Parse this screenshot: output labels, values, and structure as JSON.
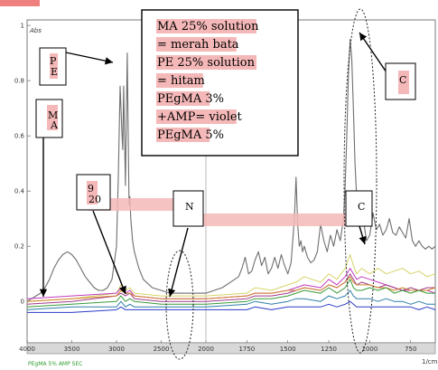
{
  "chart_data": {
    "type": "line",
    "ylabel": "Abs",
    "xlabel": "1/cm",
    "xlim": [
      4000,
      600
    ],
    "ylim": [
      -0.15,
      1.02
    ],
    "x_ticks": [
      4000,
      3500,
      3000,
      2500,
      2000,
      1750,
      1500,
      1250,
      1000,
      750
    ],
    "x_tick_labels": [
      "4000",
      "3500",
      "3000",
      "2500",
      "2000",
      "1750",
      "1500",
      "1250",
      "1000",
      "750"
    ],
    "y_ticks": [
      1.0,
      0.8,
      0.6,
      0.4,
      0.2,
      0.0
    ],
    "y_tick_labels": [
      "1",
      "0.8",
      "0.6",
      "0.4",
      "0.2",
      "0"
    ],
    "footer_caption": "PEgMA 5% AMP SEC",
    "series": [
      {
        "color": "#6e6e6e",
        "x": [
          4000,
          3950,
          3900,
          3850,
          3800,
          3750,
          3700,
          3650,
          3600,
          3550,
          3500,
          3450,
          3400,
          3350,
          3300,
          3250,
          3200,
          3150,
          3100,
          3050,
          3000,
          2980,
          2960,
          2940,
          2930,
          2920,
          2900,
          2880,
          2870,
          2860,
          2850,
          2840,
          2820,
          2800,
          2750,
          2700,
          2600,
          2500,
          2400,
          2300,
          2200,
          2100,
          2000,
          1950,
          1900,
          1850,
          1800,
          1780,
          1760,
          1750,
          1740,
          1720,
          1700,
          1680,
          1660,
          1640,
          1620,
          1600,
          1580,
          1560,
          1540,
          1520,
          1500,
          1480,
          1460,
          1450,
          1440,
          1430,
          1420,
          1410,
          1400,
          1380,
          1360,
          1340,
          1320,
          1300,
          1280,
          1260,
          1240,
          1220,
          1200,
          1180,
          1160,
          1150,
          1140,
          1130,
          1120,
          1110,
          1100,
          1090,
          1080,
          1070,
          1060,
          1050,
          1040,
          1020,
          1000,
          980,
          960,
          940,
          920,
          900,
          880,
          860,
          840,
          820,
          800,
          780,
          760,
          740,
          720,
          700,
          680,
          660,
          640,
          620,
          600
        ],
        "y": [
          0.0,
          0.01,
          0.02,
          0.03,
          0.05,
          0.08,
          0.12,
          0.15,
          0.17,
          0.18,
          0.17,
          0.15,
          0.12,
          0.09,
          0.07,
          0.05,
          0.04,
          0.04,
          0.05,
          0.08,
          0.2,
          0.45,
          0.78,
          0.62,
          0.55,
          0.78,
          0.42,
          0.9,
          0.62,
          0.35,
          0.38,
          0.3,
          0.22,
          0.18,
          0.12,
          0.08,
          0.05,
          0.04,
          0.03,
          0.03,
          0.03,
          0.03,
          0.03,
          0.04,
          0.05,
          0.07,
          0.09,
          0.12,
          0.16,
          0.13,
          0.1,
          0.11,
          0.15,
          0.18,
          0.13,
          0.16,
          0.1,
          0.12,
          0.16,
          0.12,
          0.17,
          0.13,
          0.1,
          0.14,
          0.3,
          0.45,
          0.28,
          0.2,
          0.22,
          0.18,
          0.2,
          0.16,
          0.14,
          0.15,
          0.18,
          0.28,
          0.22,
          0.18,
          0.24,
          0.2,
          0.26,
          0.22,
          0.3,
          0.42,
          0.6,
          0.82,
          0.95,
          0.88,
          0.7,
          0.5,
          0.38,
          0.3,
          0.32,
          0.28,
          0.3,
          0.22,
          0.24,
          0.32,
          0.26,
          0.28,
          0.24,
          0.26,
          0.3,
          0.25,
          0.24,
          0.27,
          0.25,
          0.23,
          0.3,
          0.22,
          0.2,
          0.22,
          0.2,
          0.19,
          0.2,
          0.19,
          0.2
        ]
      },
      {
        "color": "#d6d46a",
        "x": [
          4000,
          3500,
          3000,
          2950,
          2900,
          2850,
          2800,
          2500,
          2000,
          1750,
          1700,
          1600,
          1500,
          1450,
          1400,
          1300,
          1250,
          1200,
          1150,
          1120,
          1100,
          1080,
          1050,
          1000,
          950,
          900,
          850,
          800,
          750,
          700,
          650,
          600
        ],
        "y": [
          0.0,
          0.01,
          0.03,
          0.06,
          0.04,
          0.05,
          0.03,
          0.02,
          0.02,
          0.03,
          0.05,
          0.04,
          0.06,
          0.07,
          0.09,
          0.07,
          0.1,
          0.08,
          0.12,
          0.17,
          0.13,
          0.1,
          0.12,
          0.1,
          0.12,
          0.1,
          0.11,
          0.12,
          0.1,
          0.11,
          0.09,
          0.1
        ]
      },
      {
        "color": "#c03cc0",
        "x": [
          4000,
          3500,
          3000,
          2950,
          2900,
          2850,
          2800,
          2500,
          2000,
          1750,
          1700,
          1600,
          1500,
          1450,
          1400,
          1300,
          1250,
          1200,
          1150,
          1120,
          1100,
          1080,
          1050,
          1000,
          950,
          900,
          850,
          800,
          750,
          700,
          650,
          600
        ],
        "y": [
          0.01,
          0.02,
          0.03,
          0.05,
          0.03,
          0.04,
          0.02,
          0.01,
          0.01,
          0.02,
          0.03,
          0.03,
          0.04,
          0.05,
          0.06,
          0.05,
          0.08,
          0.06,
          0.09,
          0.12,
          0.1,
          0.08,
          0.09,
          0.08,
          0.07,
          0.06,
          0.05,
          0.04,
          0.04,
          0.04,
          0.04,
          0.03
        ]
      },
      {
        "color": "#a23c8a",
        "x": [
          4000,
          3500,
          3000,
          2950,
          2900,
          2850,
          2800,
          2500,
          2000,
          1750,
          1700,
          1600,
          1500,
          1450,
          1400,
          1300,
          1250,
          1200,
          1150,
          1120,
          1100,
          1080,
          1050,
          1000,
          950,
          900,
          850,
          800,
          750,
          700,
          650,
          600
        ],
        "y": [
          -0.01,
          0.0,
          0.02,
          0.03,
          0.02,
          0.03,
          0.01,
          0.0,
          0.0,
          0.01,
          0.02,
          0.02,
          0.03,
          0.04,
          0.05,
          0.04,
          0.06,
          0.05,
          0.07,
          0.1,
          0.08,
          0.06,
          0.07,
          0.06,
          0.05,
          0.06,
          0.05,
          0.04,
          0.05,
          0.04,
          0.05,
          0.05
        ]
      },
      {
        "color": "#d2842c",
        "x": [
          4000,
          3500,
          3000,
          2950,
          2900,
          2850,
          2800,
          2500,
          2000,
          1750,
          1700,
          1600,
          1500,
          1450,
          1400,
          1300,
          1250,
          1200,
          1150,
          1120,
          1100,
          1080,
          1050,
          1000,
          950,
          900,
          850,
          800,
          750,
          700,
          650,
          600
        ],
        "y": [
          0.0,
          0.01,
          0.02,
          0.04,
          0.03,
          0.03,
          0.02,
          0.01,
          0.01,
          0.02,
          0.03,
          0.03,
          0.04,
          0.04,
          0.05,
          0.04,
          0.06,
          0.05,
          0.07,
          0.09,
          0.07,
          0.06,
          0.06,
          0.06,
          0.05,
          0.05,
          0.04,
          0.05,
          0.04,
          0.04,
          0.04,
          0.05
        ]
      },
      {
        "color": "#3a9b3a",
        "x": [
          4000,
          3500,
          3000,
          2950,
          2900,
          2850,
          2800,
          2500,
          2000,
          1750,
          1700,
          1600,
          1500,
          1450,
          1400,
          1300,
          1250,
          1200,
          1150,
          1120,
          1100,
          1080,
          1050,
          1000,
          950,
          900,
          850,
          800,
          750,
          700,
          650,
          600
        ],
        "y": [
          -0.02,
          -0.01,
          0.0,
          0.02,
          0.0,
          0.01,
          0.0,
          -0.01,
          -0.01,
          0.0,
          0.01,
          0.01,
          0.02,
          0.03,
          0.04,
          0.03,
          0.05,
          0.03,
          0.05,
          0.08,
          0.05,
          0.04,
          0.04,
          0.05,
          0.04,
          0.05,
          0.03,
          0.04,
          0.03,
          0.04,
          0.03,
          0.03
        ]
      },
      {
        "color": "#2e7fa8",
        "x": [
          4000,
          3500,
          3000,
          2950,
          2900,
          2850,
          2800,
          2500,
          2000,
          1750,
          1700,
          1600,
          1500,
          1450,
          1400,
          1300,
          1250,
          1200,
          1150,
          1120,
          1100,
          1080,
          1050,
          1000,
          950,
          900,
          850,
          800,
          750,
          700,
          650,
          600
        ],
        "y": [
          -0.03,
          -0.02,
          -0.02,
          0.0,
          -0.02,
          -0.01,
          -0.02,
          -0.02,
          -0.02,
          -0.01,
          0.0,
          -0.01,
          0.0,
          0.01,
          0.01,
          0.0,
          0.02,
          0.01,
          0.02,
          0.04,
          0.02,
          0.01,
          0.01,
          0.01,
          0.0,
          0.01,
          0.0,
          0.0,
          -0.01,
          0.0,
          -0.01,
          -0.01
        ]
      },
      {
        "color": "#2a3ac8",
        "x": [
          4000,
          3500,
          3000,
          2950,
          2900,
          2850,
          2800,
          2500,
          2000,
          1750,
          1700,
          1600,
          1500,
          1450,
          1400,
          1300,
          1250,
          1200,
          1150,
          1120,
          1100,
          1080,
          1050,
          1000,
          950,
          900,
          850,
          800,
          750,
          700,
          650,
          600
        ],
        "y": [
          -0.04,
          -0.04,
          -0.03,
          -0.02,
          -0.03,
          -0.03,
          -0.03,
          -0.03,
          -0.03,
          -0.03,
          -0.02,
          -0.03,
          -0.02,
          -0.02,
          -0.02,
          -0.02,
          -0.01,
          -0.02,
          -0.01,
          0.0,
          -0.01,
          -0.02,
          -0.02,
          -0.02,
          -0.02,
          -0.02,
          -0.02,
          -0.02,
          -0.02,
          -0.03,
          -0.02,
          -0.03
        ]
      }
    ]
  },
  "annotations": {
    "legend_box_lines": [
      "MA 25% solution",
      "= merah bata",
      "PE 25% solution",
      "= hitam",
      "PEgMA 3%",
      "+AMP= violet",
      "PEgMA 5%"
    ],
    "label_pe_p": "P",
    "label_pe_e": "E",
    "label_ma_m": "M",
    "label_ma_a": "A",
    "label_9": "9",
    "label_9_sub": "20",
    "label_n": "N",
    "label_c_top": "C",
    "label_c_mid": "C"
  },
  "colors": {
    "highlight": "#f5b8b8",
    "plot_background": "#ffffff",
    "frame": "#7a7a7a",
    "axis_bar": "#d8d8d8",
    "top_corner_mark": "#f08080"
  }
}
